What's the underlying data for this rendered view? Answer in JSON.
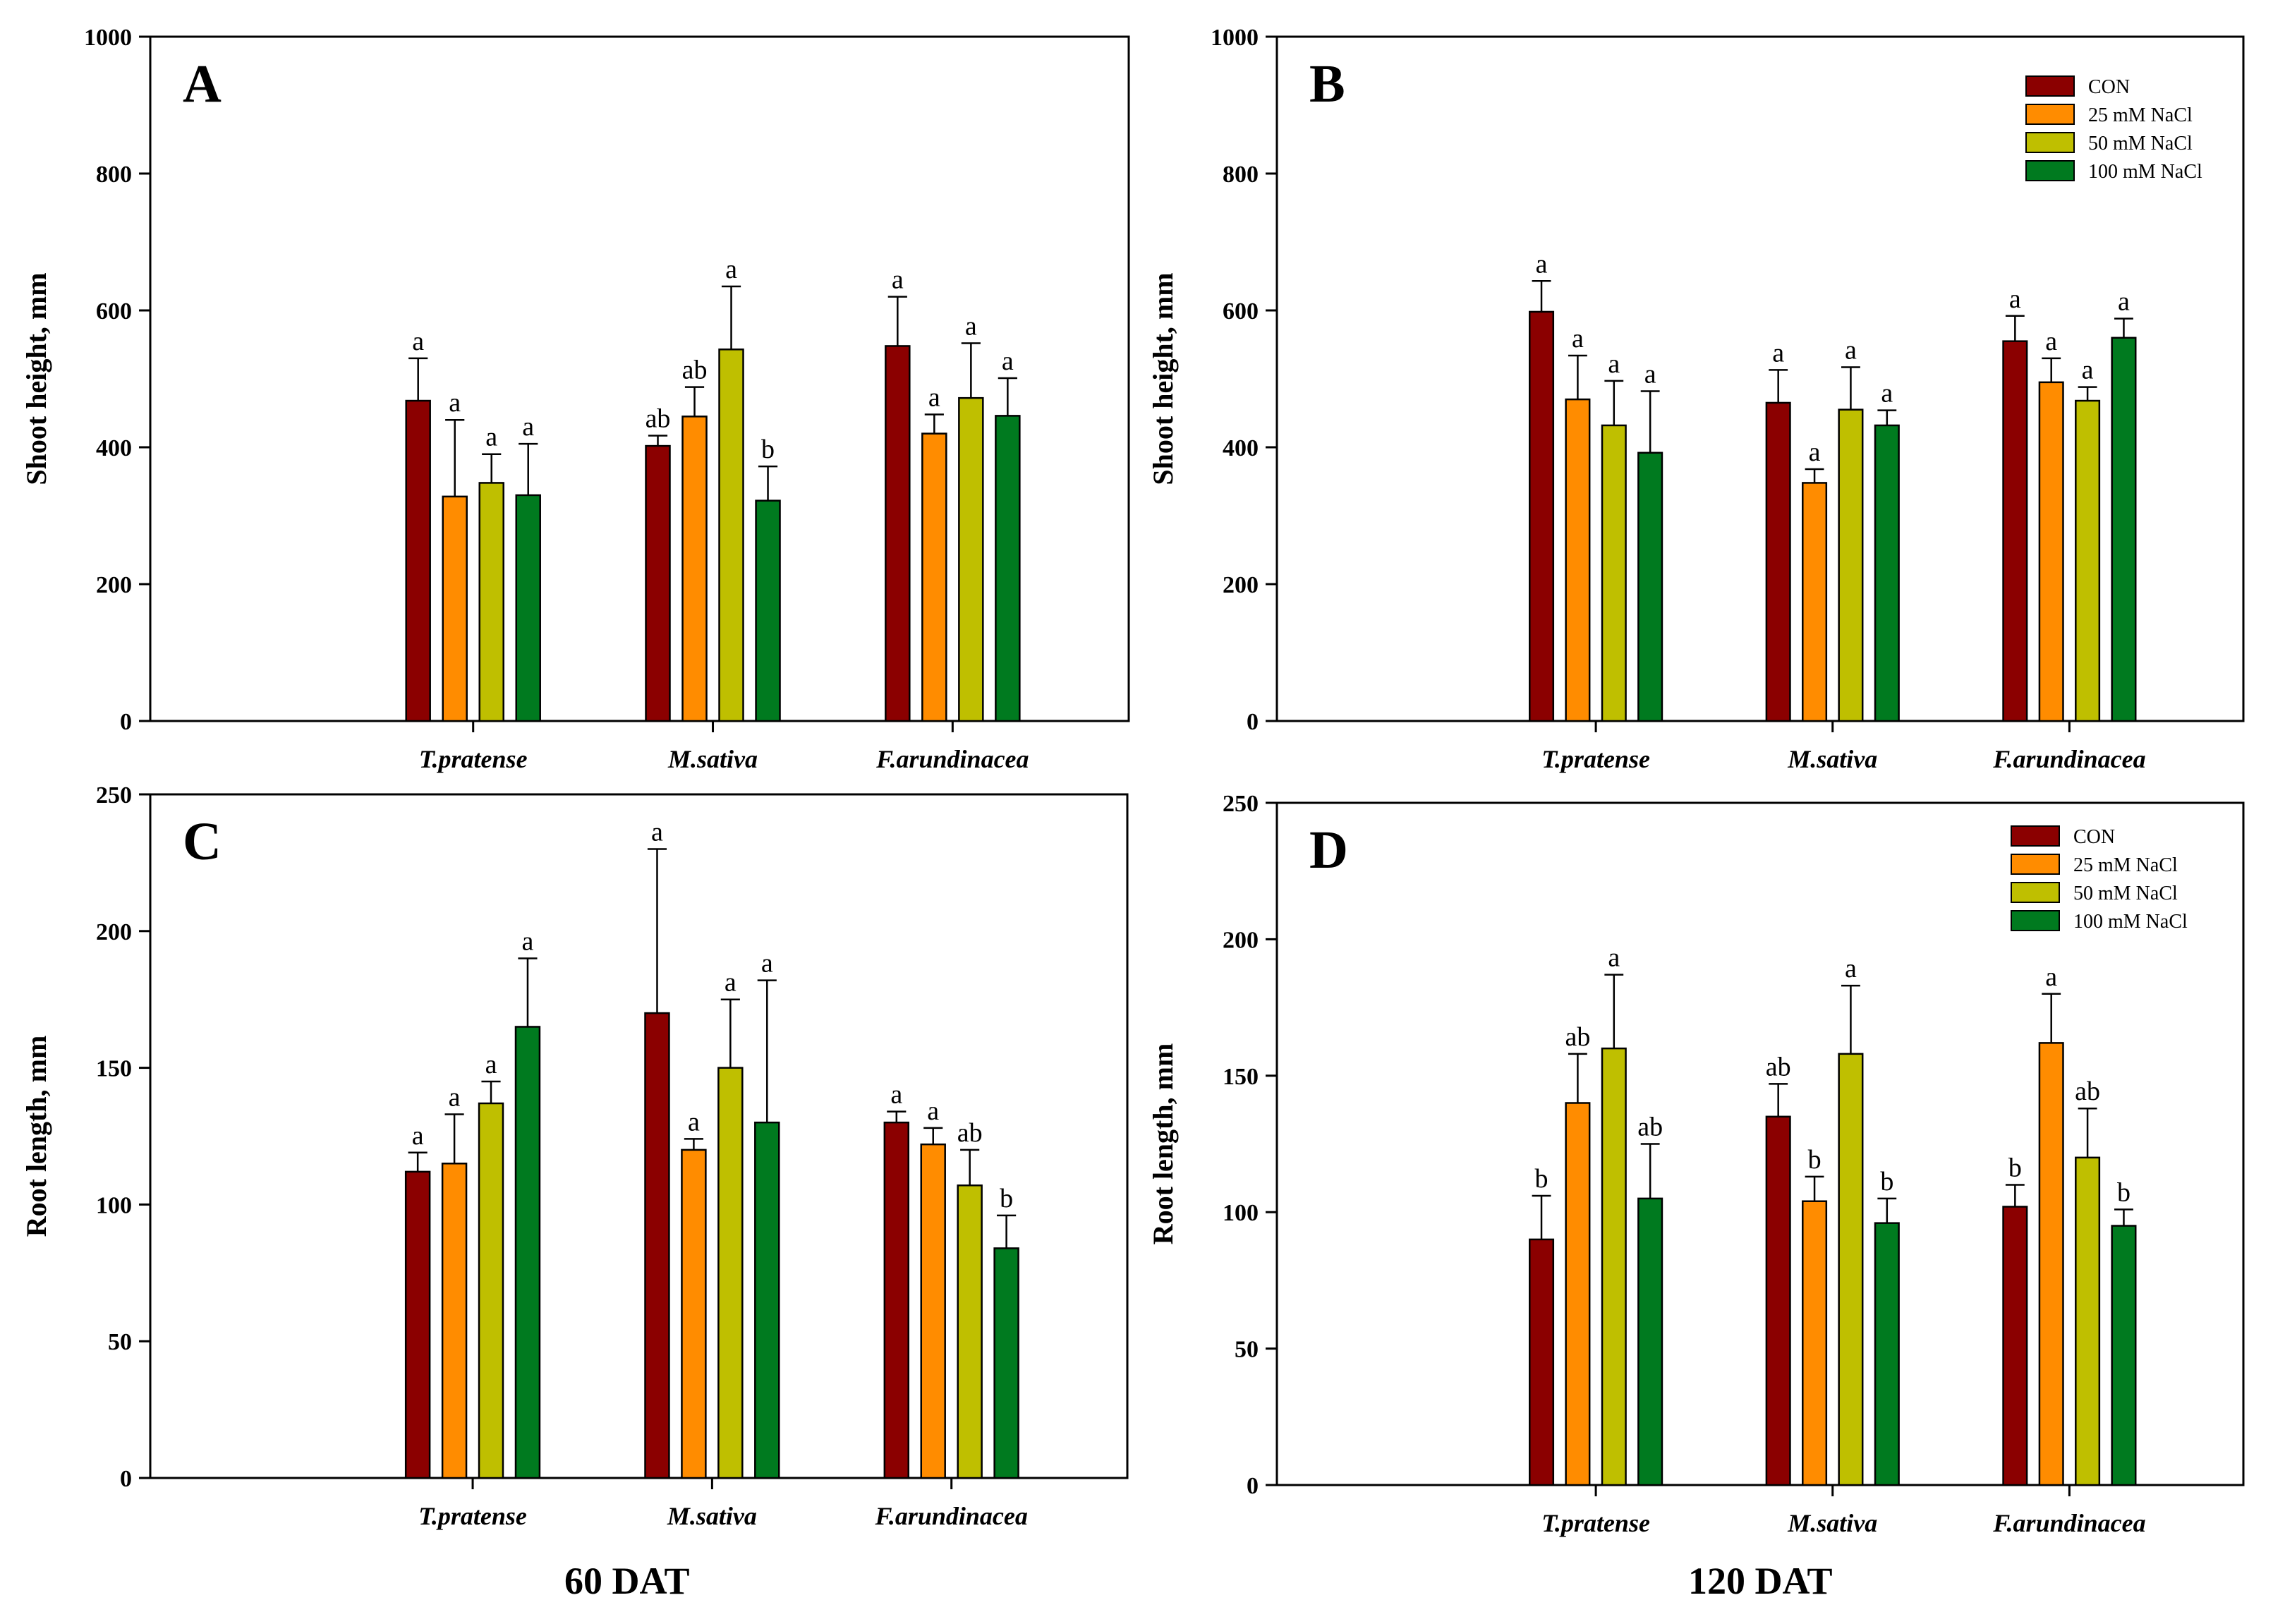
{
  "figure": {
    "left_caption": "60 DAT",
    "right_caption": "120 DAT",
    "legend": [
      {
        "label": "CON",
        "color": "#8B0000"
      },
      {
        "label": "25 mM NaCl",
        "color": "#FF8C00"
      },
      {
        "label": "50 mM NaCl",
        "color": "#BFBF00"
      },
      {
        "label": "100 mM NaCl",
        "color": "#007A1F"
      }
    ]
  },
  "chart_data": [
    {
      "id": "A",
      "type": "bar",
      "panel_label": "A",
      "ylabel": "Shoot height, mm",
      "ylim": [
        0,
        1000
      ],
      "yticks": [
        0,
        200,
        400,
        600,
        800,
        1000
      ],
      "categories": [
        "T.pratense",
        "M.sativa",
        "F.arundinacea"
      ],
      "show_legend": false,
      "series": [
        {
          "name": "CON",
          "values": [
            468,
            402,
            548
          ],
          "errors": [
            62,
            15,
            72
          ],
          "letters": [
            "a",
            "ab",
            "a"
          ]
        },
        {
          "name": "25 mM NaCl",
          "values": [
            328,
            445,
            420
          ],
          "errors": [
            112,
            43,
            28
          ],
          "letters": [
            "a",
            "ab",
            "a"
          ]
        },
        {
          "name": "50 mM NaCl",
          "values": [
            348,
            543,
            472
          ],
          "errors": [
            42,
            92,
            80
          ],
          "letters": [
            "a",
            "a",
            "a"
          ]
        },
        {
          "name": "100 mM NaCl",
          "values": [
            330,
            322,
            446
          ],
          "errors": [
            75,
            50,
            55
          ],
          "letters": [
            "a",
            "b",
            "a"
          ]
        }
      ]
    },
    {
      "id": "B",
      "type": "bar",
      "panel_label": "B",
      "ylabel": "Shoot height, mm",
      "ylim": [
        0,
        1000
      ],
      "yticks": [
        0,
        200,
        400,
        600,
        800,
        1000
      ],
      "categories": [
        "T.pratense",
        "M.sativa",
        "F.arundinacea"
      ],
      "show_legend": true,
      "series": [
        {
          "name": "CON",
          "values": [
            598,
            465,
            555
          ],
          "errors": [
            45,
            48,
            37
          ],
          "letters": [
            "a",
            "a",
            "a"
          ]
        },
        {
          "name": "25 mM NaCl",
          "values": [
            470,
            348,
            495
          ],
          "errors": [
            64,
            20,
            35
          ],
          "letters": [
            "a",
            "a",
            "a"
          ]
        },
        {
          "name": "50 mM NaCl",
          "values": [
            432,
            455,
            468
          ],
          "errors": [
            65,
            62,
            20
          ],
          "letters": [
            "a",
            "a",
            "a"
          ]
        },
        {
          "name": "100 mM NaCl",
          "values": [
            392,
            432,
            560
          ],
          "errors": [
            90,
            22,
            28
          ],
          "letters": [
            "a",
            "a",
            "a"
          ]
        }
      ]
    },
    {
      "id": "C",
      "type": "bar",
      "panel_label": "C",
      "ylabel": "Root length, mm",
      "ylim": [
        0,
        250
      ],
      "yticks": [
        0,
        50,
        100,
        150,
        200,
        250
      ],
      "categories": [
        "T.pratense",
        "M.sativa",
        "F.arundinacea"
      ],
      "show_legend": false,
      "series": [
        {
          "name": "CON",
          "values": [
            112,
            170,
            130
          ],
          "errors": [
            7,
            60,
            4
          ],
          "letters": [
            "a",
            "a",
            "a"
          ]
        },
        {
          "name": "25 mM NaCl",
          "values": [
            115,
            120,
            122
          ],
          "errors": [
            18,
            4,
            6
          ],
          "letters": [
            "a",
            "a",
            "a"
          ]
        },
        {
          "name": "50 mM NaCl",
          "values": [
            137,
            150,
            107
          ],
          "errors": [
            8,
            25,
            13
          ],
          "letters": [
            "a",
            "a",
            "ab"
          ]
        },
        {
          "name": "100 mM NaCl",
          "values": [
            165,
            130,
            84
          ],
          "errors": [
            25,
            52,
            12
          ],
          "letters": [
            "a",
            "a",
            "b"
          ]
        }
      ]
    },
    {
      "id": "D",
      "type": "bar",
      "panel_label": "D",
      "ylabel": "Root length, mm",
      "ylim": [
        0,
        250
      ],
      "yticks": [
        0,
        50,
        100,
        150,
        200,
        250
      ],
      "categories": [
        "T.pratense",
        "M.sativa",
        "F.arundinacea"
      ],
      "show_legend": true,
      "series": [
        {
          "name": "CON",
          "values": [
            90,
            135,
            102
          ],
          "errors": [
            16,
            12,
            8
          ],
          "letters": [
            "b",
            "ab",
            "b"
          ]
        },
        {
          "name": "25 mM NaCl",
          "values": [
            140,
            104,
            162
          ],
          "errors": [
            18,
            9,
            18
          ],
          "letters": [
            "ab",
            "b",
            "a"
          ]
        },
        {
          "name": "50 mM NaCl",
          "values": [
            160,
            158,
            120
          ],
          "errors": [
            27,
            25,
            18
          ],
          "letters": [
            "a",
            "a",
            "ab"
          ]
        },
        {
          "name": "100 mM NaCl",
          "values": [
            105,
            96,
            95
          ],
          "errors": [
            20,
            9,
            6
          ],
          "letters": [
            "ab",
            "b",
            "b"
          ]
        }
      ]
    }
  ]
}
